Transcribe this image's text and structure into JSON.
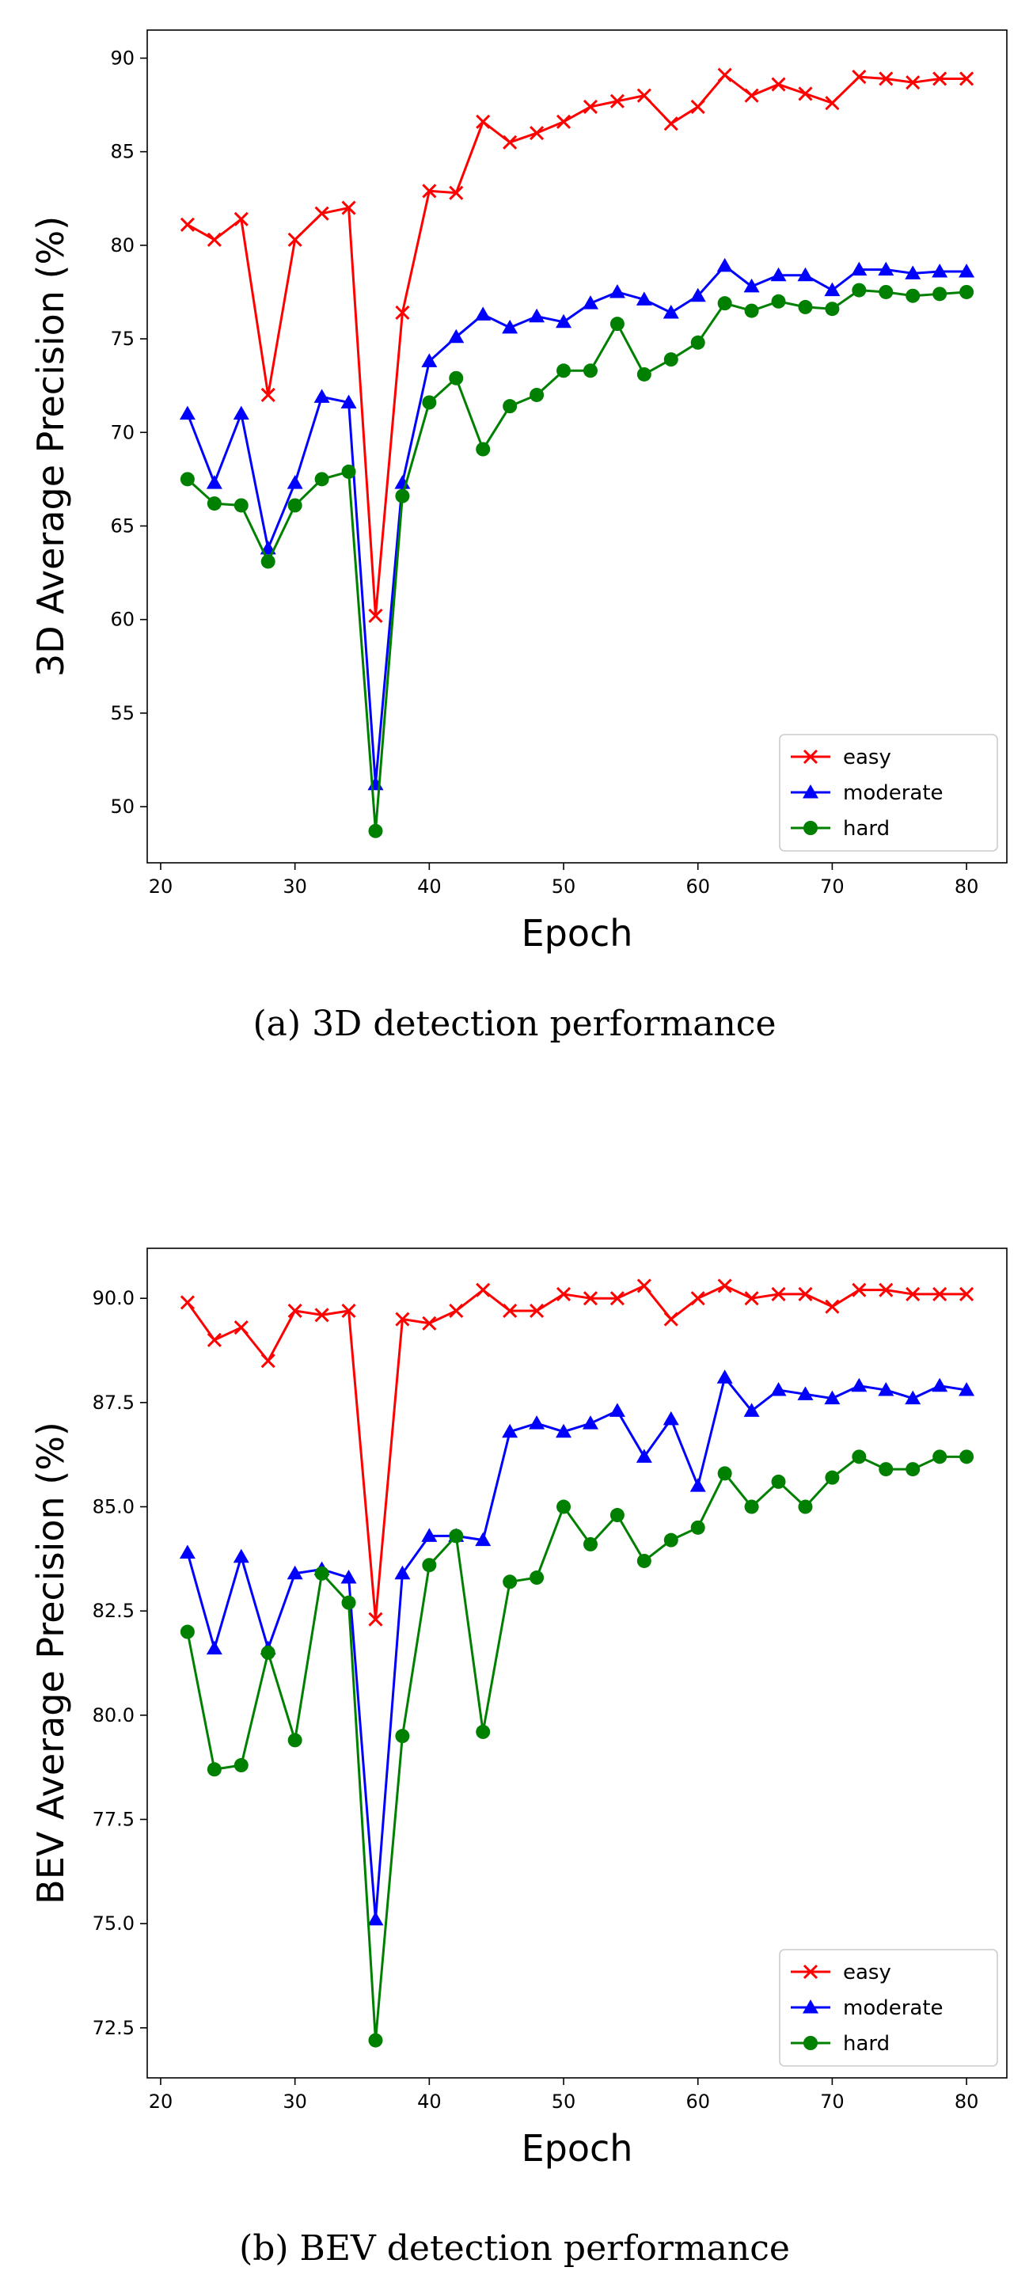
{
  "chart_data": [
    {
      "type": "line",
      "caption": "(a)  3D detection performance",
      "xlabel": "Epoch",
      "ylabel": "3D Average Precision (%)",
      "xlim": [
        19,
        83
      ],
      "ylim": [
        47,
        91.5
      ],
      "xticks": [
        20,
        30,
        40,
        50,
        60,
        70,
        80
      ],
      "xtick_labels": [
        "20",
        "30",
        "40",
        "50",
        "60",
        "70",
        "80"
      ],
      "yticks": [
        50,
        55,
        60,
        65,
        70,
        75,
        80,
        85,
        90
      ],
      "ytick_labels": [
        "50",
        "55",
        "60",
        "65",
        "70",
        "75",
        "80",
        "85",
        "90"
      ],
      "legend_position": "lower-right",
      "x": [
        22,
        24,
        26,
        28,
        30,
        32,
        34,
        36,
        38,
        40,
        42,
        44,
        46,
        48,
        50,
        52,
        54,
        56,
        58,
        60,
        62,
        64,
        66,
        68,
        70,
        72,
        74,
        76,
        78,
        80
      ],
      "series": [
        {
          "name": "easy",
          "color": "#ff0000",
          "marker": "x",
          "values": [
            81.1,
            80.3,
            81.4,
            72.0,
            80.3,
            81.7,
            82.0,
            60.2,
            76.4,
            82.9,
            82.8,
            86.6,
            85.5,
            86.0,
            86.6,
            87.4,
            87.7,
            88.0,
            86.5,
            87.4,
            89.1,
            88.0,
            88.6,
            88.1,
            87.6,
            89.0,
            88.9,
            88.7,
            88.9,
            88.9
          ]
        },
        {
          "name": "moderate",
          "color": "#0000ff",
          "marker": "triangle",
          "values": [
            71.0,
            67.3,
            71.0,
            63.8,
            67.3,
            71.9,
            71.6,
            51.2,
            67.3,
            73.8,
            75.1,
            76.3,
            75.6,
            76.2,
            75.9,
            76.9,
            77.5,
            77.1,
            76.4,
            77.3,
            78.9,
            77.8,
            78.4,
            78.4,
            77.6,
            78.7,
            78.7,
            78.5,
            78.6,
            78.6
          ]
        },
        {
          "name": "hard",
          "color": "#008000",
          "marker": "circle",
          "values": [
            67.5,
            66.2,
            66.1,
            63.1,
            66.1,
            67.5,
            67.9,
            48.7,
            66.6,
            71.6,
            72.9,
            69.1,
            71.4,
            72.0,
            73.3,
            73.3,
            75.8,
            73.1,
            73.9,
            74.8,
            76.9,
            76.5,
            77.0,
            76.7,
            76.6,
            77.6,
            77.5,
            77.3,
            77.4,
            77.5
          ]
        }
      ]
    },
    {
      "type": "line",
      "caption": "(b)  BEV detection performance",
      "xlabel": "Epoch",
      "ylabel": "BEV Average Precision (%)",
      "xlim": [
        19,
        83
      ],
      "ylim": [
        71.3,
        91.2
      ],
      "xticks": [
        20,
        30,
        40,
        50,
        60,
        70,
        80
      ],
      "xtick_labels": [
        "20",
        "30",
        "40",
        "50",
        "60",
        "70",
        "80"
      ],
      "yticks": [
        72.5,
        75,
        77.5,
        80,
        82.5,
        85,
        87.5,
        90
      ],
      "ytick_labels": [
        "72.5",
        "75.0",
        "77.5",
        "80.0",
        "82.5",
        "85.0",
        "87.5",
        "90.0"
      ],
      "legend_position": "lower-right",
      "x": [
        22,
        24,
        26,
        28,
        30,
        32,
        34,
        36,
        38,
        40,
        42,
        44,
        46,
        48,
        50,
        52,
        54,
        56,
        58,
        60,
        62,
        64,
        66,
        68,
        70,
        72,
        74,
        76,
        78,
        80
      ],
      "series": [
        {
          "name": "easy",
          "color": "#ff0000",
          "marker": "x",
          "values": [
            89.9,
            89.0,
            89.3,
            88.5,
            89.7,
            89.6,
            89.7,
            82.3,
            89.5,
            89.4,
            89.7,
            90.2,
            89.7,
            89.7,
            90.1,
            90.0,
            90.0,
            90.3,
            89.5,
            90.0,
            90.3,
            90.0,
            90.1,
            90.1,
            89.8,
            90.2,
            90.2,
            90.1,
            90.1,
            90.1
          ]
        },
        {
          "name": "moderate",
          "color": "#0000ff",
          "marker": "triangle",
          "values": [
            83.9,
            81.6,
            83.8,
            81.6,
            83.4,
            83.5,
            83.3,
            75.1,
            83.4,
            84.3,
            84.3,
            84.2,
            86.8,
            87.0,
            86.8,
            87.0,
            87.3,
            86.2,
            87.1,
            85.5,
            88.1,
            87.3,
            87.8,
            87.7,
            87.6,
            87.9,
            87.8,
            87.6,
            87.9,
            87.8
          ]
        },
        {
          "name": "hard",
          "color": "#008000",
          "marker": "circle",
          "values": [
            82.0,
            78.7,
            78.8,
            81.5,
            79.4,
            83.4,
            82.7,
            72.2,
            79.5,
            83.6,
            84.3,
            79.6,
            83.2,
            83.3,
            85.0,
            84.1,
            84.8,
            83.7,
            84.2,
            84.5,
            85.8,
            85.0,
            85.6,
            85.0,
            85.7,
            86.2,
            85.9,
            85.9,
            86.2,
            86.2
          ]
        }
      ]
    }
  ]
}
